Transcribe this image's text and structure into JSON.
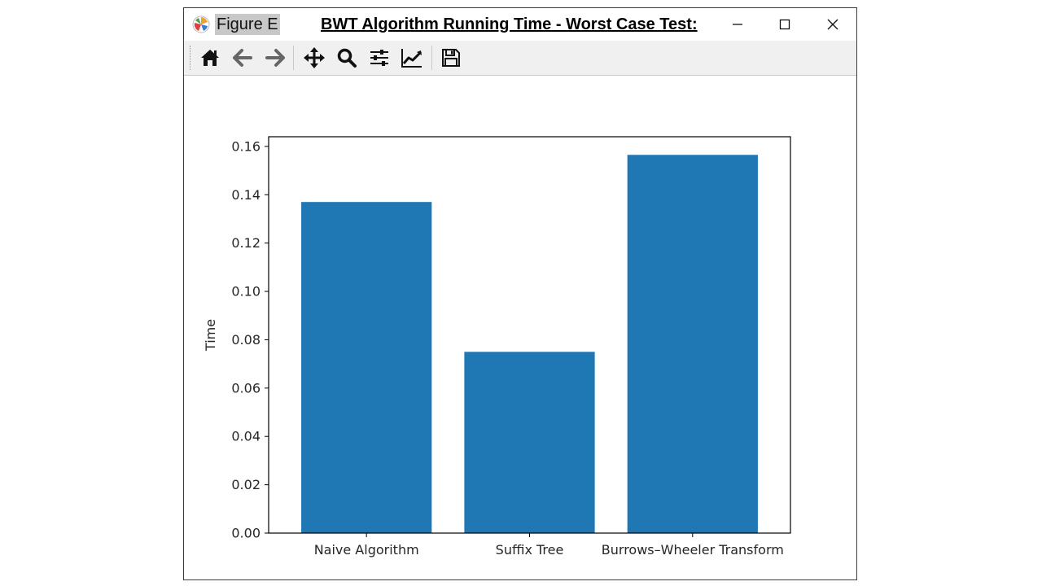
{
  "window": {
    "figure_label": "Figure E",
    "title": "BWT Algorithm Running Time  - Worst Case Test:"
  },
  "toolbar": {
    "items": [
      "home-icon",
      "back-icon",
      "forward-icon",
      "pan-icon",
      "zoom-icon",
      "configure-subplots-icon",
      "edit-axis-icon",
      "save-icon"
    ]
  },
  "colors": {
    "bar": "#1f77b4",
    "axis": "#000000"
  },
  "chart_data": {
    "type": "bar",
    "categories": [
      "Naive Algorithm",
      "Suffix Tree",
      "Burrows–Wheeler Transform"
    ],
    "values": [
      0.137,
      0.075,
      0.1565
    ],
    "title": "",
    "xlabel": "",
    "ylabel": "Time",
    "ylim": [
      0,
      0.164
    ],
    "yticks": [
      "0.00",
      "0.02",
      "0.04",
      "0.06",
      "0.08",
      "0.10",
      "0.12",
      "0.14",
      "0.16"
    ],
    "grid": false
  }
}
